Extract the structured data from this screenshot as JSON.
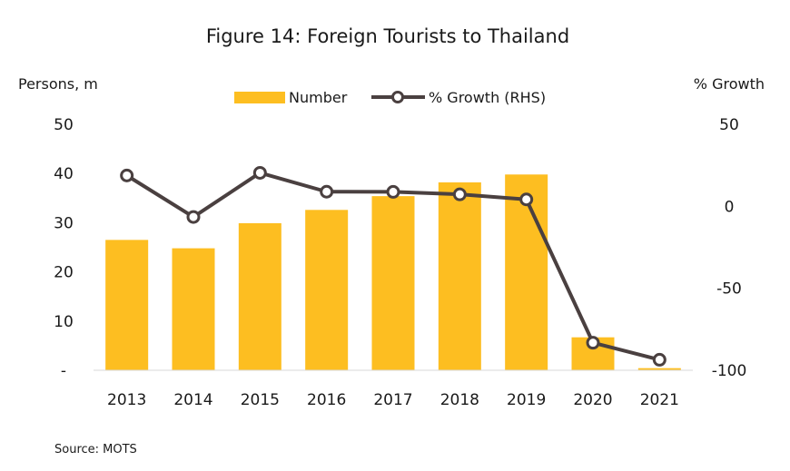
{
  "chart_data": {
    "type": "bar",
    "title": "Figure 14: Foreign Tourists  to Thailand",
    "ylabel_left": "Persons, m",
    "ylabel_right": "% Growth",
    "source": "Source: MOTS",
    "categories": [
      "2013",
      "2014",
      "2015",
      "2016",
      "2017",
      "2018",
      "2019",
      "2020",
      "2021"
    ],
    "series": [
      {
        "name": "Number",
        "type": "bar",
        "axis": "left",
        "color": "#FDBE21",
        "values": [
          26.5,
          24.8,
          29.9,
          32.6,
          35.4,
          38.2,
          39.8,
          6.7,
          0.43
        ]
      },
      {
        "name": "% Growth (RHS)",
        "type": "line",
        "axis": "right",
        "color": "#4A4040",
        "values": [
          18.8,
          -6.5,
          20.4,
          8.9,
          8.8,
          7.3,
          4.2,
          -83.2,
          -93.6
        ]
      }
    ],
    "y_left": {
      "ylim": [
        0,
        50
      ],
      "ticks": [
        0,
        10,
        20,
        30,
        40,
        50
      ],
      "tick_labels": [
        "-",
        "10",
        "20",
        "30",
        "40",
        "50"
      ]
    },
    "y_right": {
      "ylim": [
        -100,
        50
      ],
      "ticks": [
        -100,
        -50,
        0,
        50
      ],
      "tick_labels": [
        "-100",
        "-50",
        "0",
        "50"
      ]
    },
    "grid": false,
    "legend_position": "top-center"
  }
}
